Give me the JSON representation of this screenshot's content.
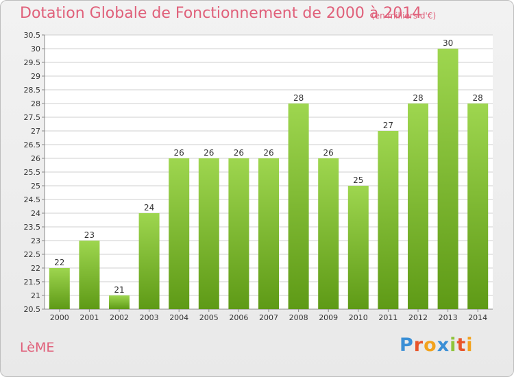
{
  "header": {
    "title": "Dotation Globale de Fonctionnement de 2000 à 2014",
    "unit": "(en milliers d'€)"
  },
  "footer": {
    "commune": "LèME",
    "brand": "Proxiti"
  },
  "colors": {
    "title": "#e0607a",
    "bar_top": "#9ed64f",
    "bar_bottom": "#5e9a16",
    "grid": "#cfcfcf"
  },
  "chart_data": {
    "type": "bar",
    "title": "Dotation Globale de Fonctionnement de 2000 à 2014",
    "subtitle": "(en milliers d'€)",
    "categories": [
      "2000",
      "2001",
      "2002",
      "2003",
      "2004",
      "2005",
      "2006",
      "2007",
      "2008",
      "2009",
      "2010",
      "2011",
      "2012",
      "2013",
      "2014"
    ],
    "values": [
      22,
      23,
      21,
      24,
      26,
      26,
      26,
      26,
      28,
      26,
      25,
      27,
      28,
      30,
      28
    ],
    "data_labels": [
      "22",
      "23",
      "21",
      "24",
      "26",
      "26",
      "26",
      "26",
      "28",
      "26",
      "25",
      "27",
      "28",
      "30",
      "28"
    ],
    "ylim": [
      20.5,
      30.5
    ],
    "yticks": [
      "20.5",
      "21",
      "21.5",
      "22",
      "22.5",
      "23",
      "23.5",
      "24",
      "24.5",
      "25",
      "25.5",
      "26",
      "26.5",
      "27",
      "27.5",
      "28",
      "28.5",
      "29",
      "29.5",
      "30",
      "30.5"
    ],
    "grid": true,
    "legend": "none"
  }
}
